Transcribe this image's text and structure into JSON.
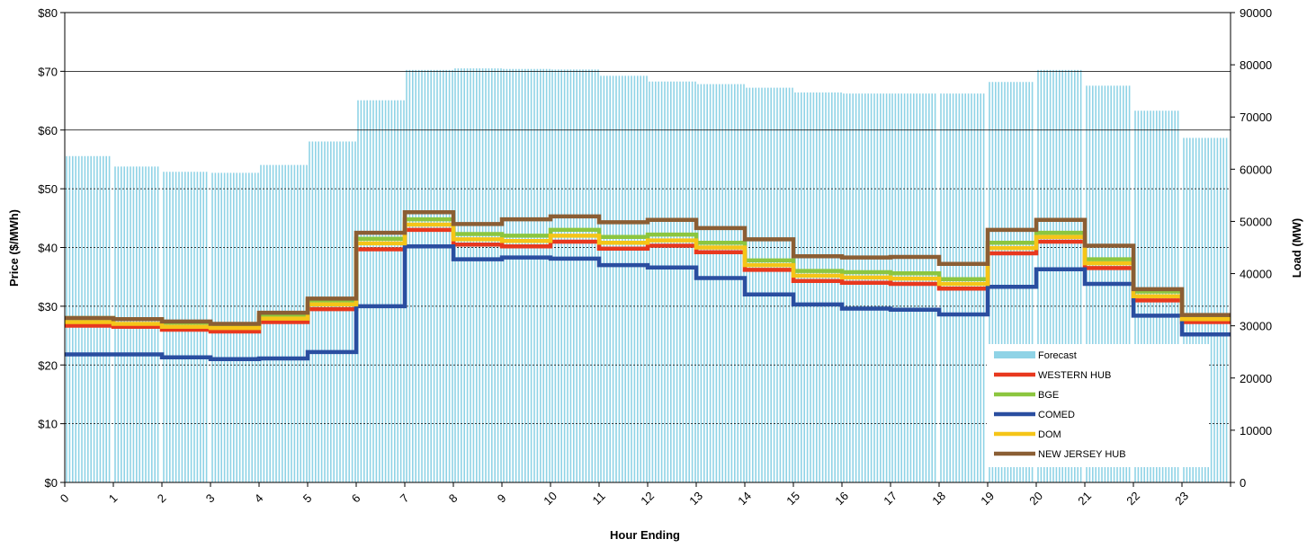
{
  "chart_data": {
    "type": "line",
    "xlabel": "Hour Ending",
    "ylabel": "Price ($/MWh)",
    "y2label": "Load (MW)",
    "xlim": [
      0,
      24
    ],
    "ylim": [
      0,
      80
    ],
    "y2lim": [
      0,
      90000
    ],
    "x_ticks": [
      "0",
      "1",
      "2",
      "3",
      "4",
      "5",
      "6",
      "7",
      "8",
      "9",
      "10",
      "11",
      "12",
      "13",
      "14",
      "15",
      "16",
      "17",
      "18",
      "19",
      "20",
      "21",
      "22",
      "23"
    ],
    "y_ticks": [
      "$0",
      "$10",
      "$20",
      "$30",
      "$40",
      "$50",
      "$60",
      "$70",
      "$80"
    ],
    "y2_ticks": [
      "0",
      "10000",
      "20000",
      "30000",
      "40000",
      "50000",
      "60000",
      "70000",
      "80000",
      "90000"
    ],
    "grid": {
      "major_y": true,
      "style": "dotted below $50, solid above"
    },
    "legend_position": "lower-right",
    "forecast": {
      "name": "Forecast",
      "axis": "right",
      "color": "#8fd3e6",
      "values": [
        62500,
        60500,
        59500,
        59300,
        60800,
        65300,
        73200,
        79000,
        79300,
        79200,
        79100,
        77900,
        76800,
        76300,
        75600,
        74700,
        74500,
        74500,
        74500,
        76700,
        79000,
        76000,
        71200,
        66000
      ]
    },
    "series": [
      {
        "name": "WESTERN HUB",
        "color": "#e8381e",
        "values": [
          26.7,
          26.5,
          26.0,
          25.7,
          27.3,
          29.5,
          39.7,
          43.0,
          40.5,
          40.2,
          41.0,
          39.8,
          40.3,
          39.2,
          36.2,
          34.3,
          34.0,
          33.8,
          33.0,
          39.0,
          41.0,
          36.5,
          31.0,
          27.3
        ]
      },
      {
        "name": "BGE",
        "color": "#8cc63f",
        "values": [
          28.0,
          27.8,
          27.2,
          26.9,
          28.5,
          31.0,
          41.5,
          44.8,
          42.3,
          42.0,
          43.0,
          41.8,
          42.2,
          40.8,
          37.8,
          36.0,
          35.8,
          35.6,
          34.6,
          40.8,
          42.5,
          38.0,
          32.5,
          28.2
        ]
      },
      {
        "name": "COMED",
        "color": "#2a4ea0",
        "values": [
          21.8,
          21.8,
          21.3,
          21.0,
          21.1,
          22.2,
          30.0,
          40.2,
          38.0,
          38.3,
          38.1,
          37.0,
          36.6,
          34.8,
          32.0,
          30.3,
          29.6,
          29.4,
          28.6,
          33.3,
          36.3,
          33.8,
          28.4,
          25.2
        ]
      },
      {
        "name": "DOM",
        "color": "#f5c518",
        "values": [
          27.3,
          27.0,
          26.5,
          26.3,
          27.9,
          30.3,
          40.7,
          43.9,
          41.4,
          41.1,
          42.0,
          40.8,
          41.2,
          40.0,
          37.0,
          35.2,
          34.9,
          34.7,
          33.8,
          39.9,
          41.8,
          37.3,
          31.7,
          27.8
        ]
      },
      {
        "name": "NEW JERSEY HUB",
        "color": "#8b5e34",
        "values": [
          28.0,
          27.8,
          27.4,
          27.0,
          28.9,
          31.3,
          42.5,
          46.0,
          44.0,
          44.8,
          45.3,
          44.3,
          44.7,
          43.3,
          41.4,
          38.5,
          38.3,
          38.4,
          37.2,
          43.0,
          44.7,
          40.3,
          32.9,
          28.5
        ]
      }
    ]
  }
}
